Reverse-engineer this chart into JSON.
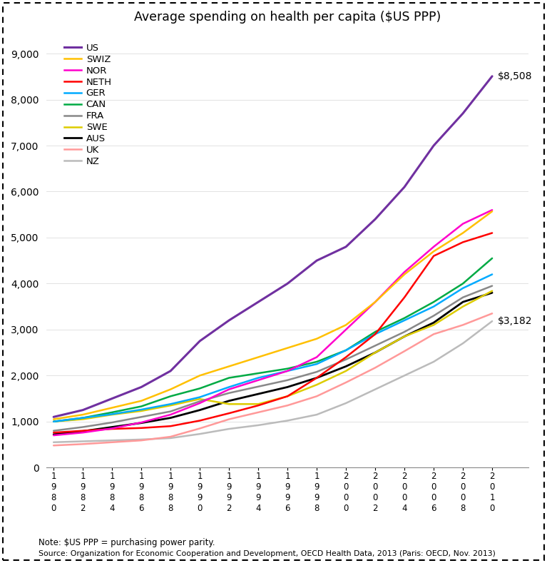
{
  "title": "Average spending on health per capita ($US PPP)",
  "years": [
    1980,
    1982,
    1984,
    1986,
    1988,
    1990,
    1992,
    1994,
    1996,
    1998,
    2000,
    2002,
    2004,
    2006,
    2008,
    2010
  ],
  "series": {
    "US": [
      1100,
      1250,
      1500,
      1750,
      2100,
      2750,
      3200,
      3600,
      4000,
      4500,
      4800,
      5400,
      6100,
      7000,
      7700,
      8508
    ],
    "SWIZ": [
      1050,
      1150,
      1300,
      1450,
      1700,
      2000,
      2200,
      2400,
      2600,
      2800,
      3100,
      3600,
      4200,
      4700,
      5100,
      5570
    ],
    "NOR": [
      700,
      760,
      850,
      980,
      1150,
      1400,
      1700,
      1900,
      2100,
      2400,
      3000,
      3600,
      4250,
      4800,
      5300,
      5600
    ],
    "NETH": [
      760,
      800,
      840,
      860,
      900,
      1020,
      1180,
      1350,
      1550,
      1950,
      2400,
      2900,
      3700,
      4600,
      4900,
      5100
    ],
    "GER": [
      1000,
      1080,
      1160,
      1260,
      1380,
      1530,
      1750,
      1950,
      2100,
      2250,
      2550,
      2900,
      3200,
      3500,
      3900,
      4200
    ],
    "CAN": [
      1000,
      1080,
      1200,
      1330,
      1550,
      1720,
      1950,
      2050,
      2150,
      2300,
      2550,
      2950,
      3250,
      3600,
      4000,
      4550
    ],
    "FRA": [
      800,
      880,
      980,
      1100,
      1220,
      1440,
      1620,
      1760,
      1900,
      2080,
      2350,
      2650,
      2950,
      3300,
      3700,
      3950
    ],
    "SWE": [
      1000,
      1050,
      1150,
      1230,
      1350,
      1490,
      1380,
      1380,
      1550,
      1800,
      2100,
      2500,
      2850,
      3100,
      3500,
      3840
    ],
    "AUS": [
      720,
      790,
      880,
      970,
      1080,
      1250,
      1450,
      1600,
      1750,
      1950,
      2200,
      2500,
      2850,
      3150,
      3600,
      3800
    ],
    "UK": [
      480,
      510,
      550,
      590,
      670,
      850,
      1050,
      1200,
      1350,
      1550,
      1850,
      2170,
      2530,
      2900,
      3100,
      3350
    ],
    "NZ": [
      550,
      570,
      590,
      610,
      640,
      730,
      840,
      920,
      1020,
      1150,
      1400,
      1700,
      2000,
      2300,
      2700,
      3182
    ]
  },
  "colors": {
    "US": "#7030A0",
    "SWIZ": "#FFC000",
    "NOR": "#FF00CC",
    "NETH": "#FF0000",
    "GER": "#00AAFF",
    "CAN": "#00AA44",
    "FRA": "#888888",
    "SWE": "#DDCC00",
    "AUS": "#000000",
    "UK": "#FF9999",
    "NZ": "#BBBBBB"
  },
  "linewidths": {
    "US": 2.2,
    "SWIZ": 1.8,
    "NOR": 1.8,
    "NETH": 1.8,
    "GER": 1.8,
    "CAN": 1.8,
    "FRA": 1.8,
    "SWE": 1.8,
    "AUS": 2.0,
    "UK": 1.8,
    "NZ": 1.8
  },
  "ylim": [
    0,
    9500
  ],
  "yticks": [
    0,
    1000,
    2000,
    3000,
    4000,
    5000,
    6000,
    7000,
    8000,
    9000
  ],
  "annotation_US": "$8,508",
  "annotation_NZ": "$3,182",
  "note": "Note: $US PPP = purchasing power parity.",
  "source": "Source: Organization for Economic Cooperation and Development, OECD Health Data, 2013 (Paris: OECD, Nov. 2013)",
  "background_color": "#FFFFFF"
}
